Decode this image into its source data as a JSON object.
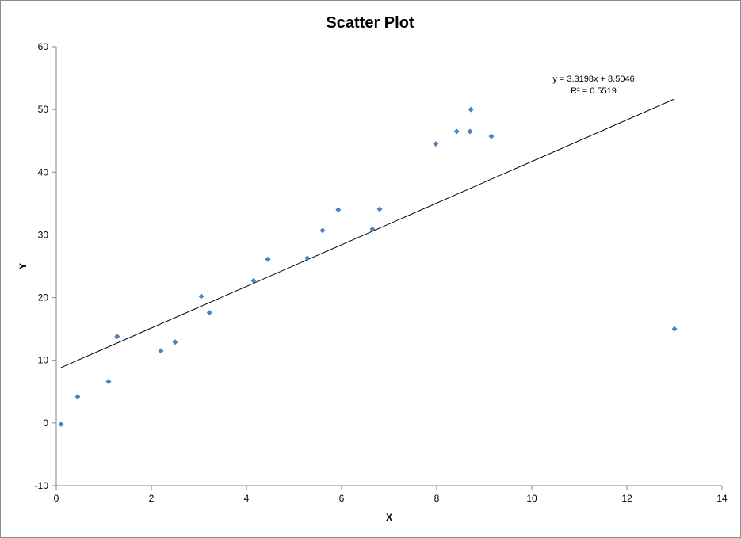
{
  "chart_data": {
    "type": "scatter",
    "title": "Scatter Plot",
    "xlabel": "X",
    "ylabel": "Y",
    "xlim": [
      0,
      14
    ],
    "ylim": [
      -10,
      60
    ],
    "x_ticks": [
      0,
      2,
      4,
      6,
      8,
      10,
      12,
      14
    ],
    "y_ticks": [
      -10,
      0,
      10,
      20,
      30,
      40,
      50,
      60
    ],
    "grid": false,
    "legend": "none",
    "marker_color": "#4f81bd",
    "trendline_color": "#000000",
    "series": [
      {
        "points": [
          {
            "x": 0.1,
            "y": -0.2
          },
          {
            "x": 0.45,
            "y": 4.2
          },
          {
            "x": 1.1,
            "y": 6.6
          },
          {
            "x": 1.28,
            "y": 13.8
          },
          {
            "x": 2.2,
            "y": 11.5
          },
          {
            "x": 2.5,
            "y": 12.9
          },
          {
            "x": 3.05,
            "y": 20.2
          },
          {
            "x": 3.22,
            "y": 17.6
          },
          {
            "x": 4.15,
            "y": 22.7
          },
          {
            "x": 4.45,
            "y": 26.1
          },
          {
            "x": 5.28,
            "y": 26.3
          },
          {
            "x": 5.6,
            "y": 30.7
          },
          {
            "x": 5.93,
            "y": 34.0
          },
          {
            "x": 6.65,
            "y": 30.9
          },
          {
            "x": 6.8,
            "y": 34.1
          },
          {
            "x": 7.98,
            "y": 44.5
          },
          {
            "x": 8.42,
            "y": 46.5
          },
          {
            "x": 8.7,
            "y": 46.5
          },
          {
            "x": 8.72,
            "y": 50.0
          },
          {
            "x": 9.15,
            "y": 45.7
          },
          {
            "x": 13.0,
            "y": 15.0
          }
        ]
      }
    ],
    "trendline": {
      "slope": 3.3198,
      "intercept": 8.5046,
      "x_range": [
        0.1,
        13.0
      ],
      "equation_label": "y = 3.3198x + 8.5046",
      "r2_label": "R² = 0.5519"
    }
  }
}
